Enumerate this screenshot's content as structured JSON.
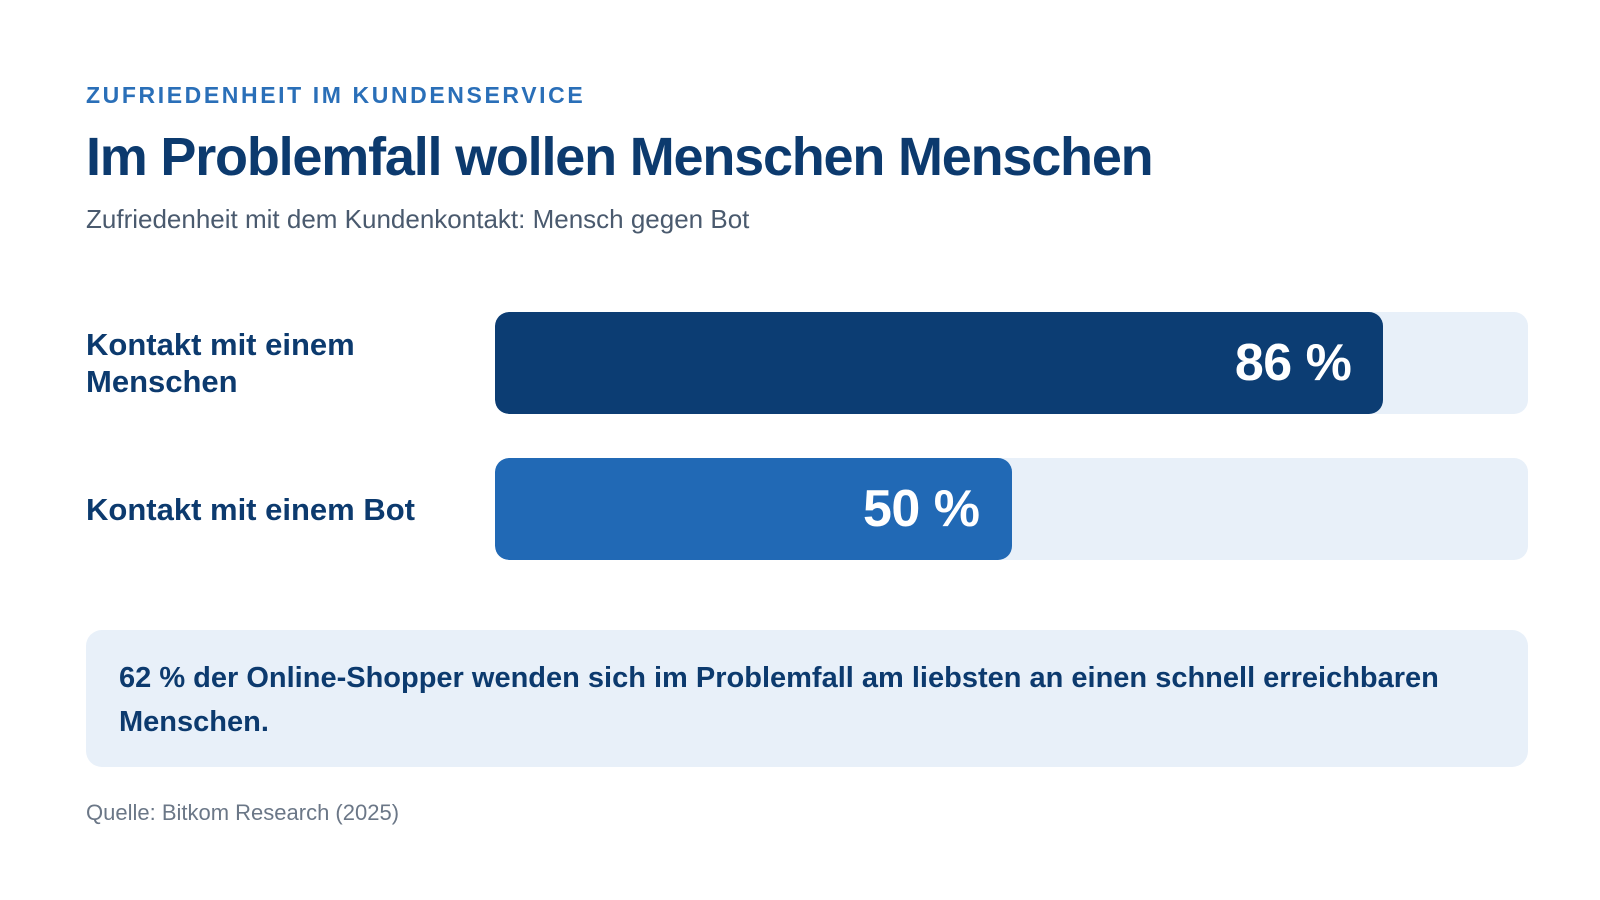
{
  "header": {
    "kicker": "ZUFRIEDENHEIT IM KUNDENSERVICE",
    "title": "Im Problemfall wollen Menschen Menschen",
    "subtitle": "Zufriedenheit mit dem Kundenkontakt: Mensch gegen Bot"
  },
  "chart_data": {
    "type": "bar",
    "orientation": "horizontal",
    "categories": [
      "Kontakt mit einem Menschen",
      "Kontakt mit einem Bot"
    ],
    "values": [
      86,
      50
    ],
    "value_labels": [
      "86 %",
      "50 %"
    ],
    "unit": "%",
    "xlim": [
      0,
      100
    ],
    "bar_colors": [
      "#0c3d73",
      "#2169b5"
    ],
    "track_color": "#e8f0f9",
    "grid": false,
    "legend": "none"
  },
  "callout": {
    "text": "62 % der Online-Shopper wenden sich im Problemfall am liebsten an einen schnell erreichbaren Menschen."
  },
  "footer": {
    "source": "Quelle: Bitkom Research (2025)"
  }
}
